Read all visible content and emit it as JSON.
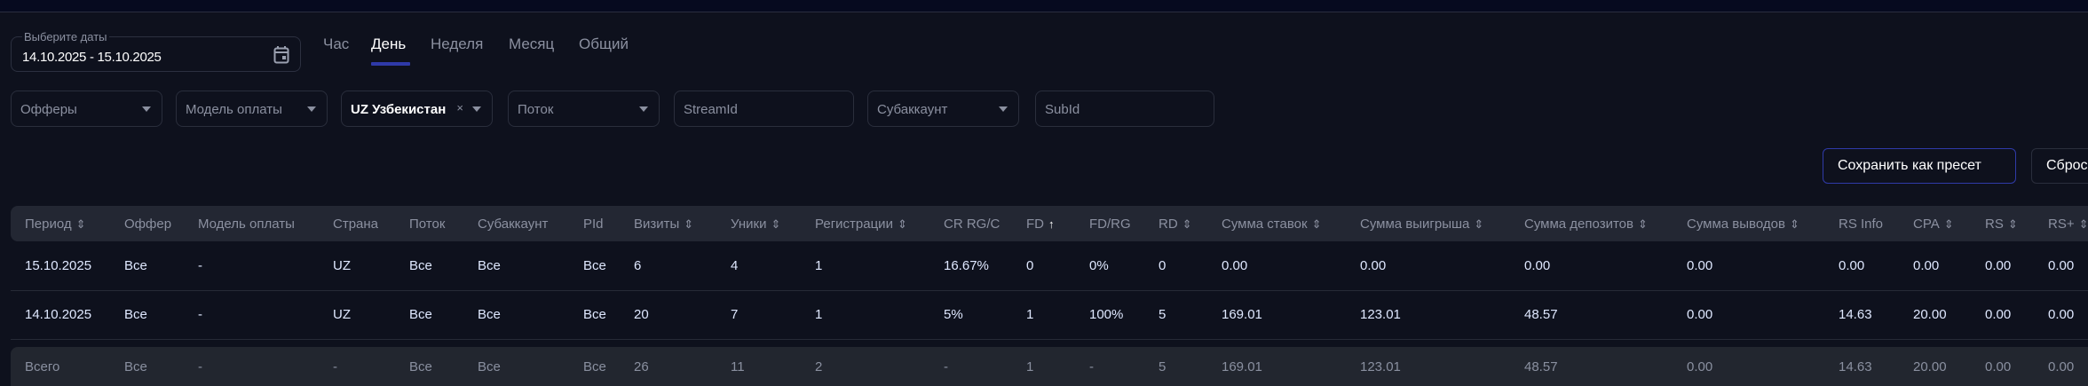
{
  "datepicker": {
    "label": "Выберите даты",
    "value": "14.10.2025 - 15.10.2025",
    "icon": "calendar-icon"
  },
  "tabs": [
    {
      "label": "Час"
    },
    {
      "label": "День",
      "active": true
    },
    {
      "label": "Неделя"
    },
    {
      "label": "Месяц"
    },
    {
      "label": "Общий"
    }
  ],
  "filters": {
    "offers": "Офферы",
    "payment_model": "Модель оплаты",
    "country": "UZ Узбекистан",
    "country_clear": "×",
    "stream": "Поток",
    "stream_id": "StreamId",
    "subaccount": "Субаккаунт",
    "sub_id": "SubId"
  },
  "buttons": {
    "save_preset": "Сохранить как пресет",
    "reset": "Сброс"
  },
  "accent": "#2f3aa8",
  "table": {
    "columns": [
      {
        "label": "Период",
        "sort": "both"
      },
      {
        "label": "Оффер"
      },
      {
        "label": "Модель оплаты"
      },
      {
        "label": "Страна"
      },
      {
        "label": "Поток"
      },
      {
        "label": "Субаккаунт"
      },
      {
        "label": "PId"
      },
      {
        "label": "Визиты",
        "sort": "both"
      },
      {
        "label": "Уники",
        "sort": "both"
      },
      {
        "label": "Регистрации",
        "sort": "both"
      },
      {
        "label": "CR RG/C"
      },
      {
        "label": "FD",
        "sort": "asc"
      },
      {
        "label": "FD/RG"
      },
      {
        "label": "RD",
        "sort": "both"
      },
      {
        "label": "Сумма ставок",
        "sort": "both"
      },
      {
        "label": "Сумма выигрыша",
        "sort": "both"
      },
      {
        "label": "Сумма депозитов",
        "sort": "both"
      },
      {
        "label": "Сумма выводов",
        "sort": "both"
      },
      {
        "label": "RS Info"
      },
      {
        "label": "CPA",
        "sort": "both"
      },
      {
        "label": "RS",
        "sort": "both"
      },
      {
        "label": "RS+",
        "sort": "both"
      }
    ],
    "rows": [
      [
        "15.10.2025",
        "Все",
        "-",
        "UZ",
        "Все",
        "Все",
        "Все",
        "6",
        "4",
        "1",
        "16.67%",
        "0",
        "0%",
        "0",
        "0.00",
        "0.00",
        "0.00",
        "0.00",
        "0.00",
        "0.00",
        "0.00",
        "0.00"
      ],
      [
        "14.10.2025",
        "Все",
        "-",
        "UZ",
        "Все",
        "Все",
        "Все",
        "20",
        "7",
        "1",
        "5%",
        "1",
        "100%",
        "5",
        "169.01",
        "123.01",
        "48.57",
        "0.00",
        "14.63",
        "20.00",
        "0.00",
        "0.00"
      ]
    ],
    "total": [
      "Всего",
      "Все",
      "-",
      "-",
      "Все",
      "Все",
      "Все",
      "26",
      "11",
      "2",
      "-",
      "1",
      "-",
      "5",
      "169.01",
      "123.01",
      "48.57",
      "0.00",
      "14.63",
      "20.00",
      "0.00",
      "0.00"
    ]
  }
}
